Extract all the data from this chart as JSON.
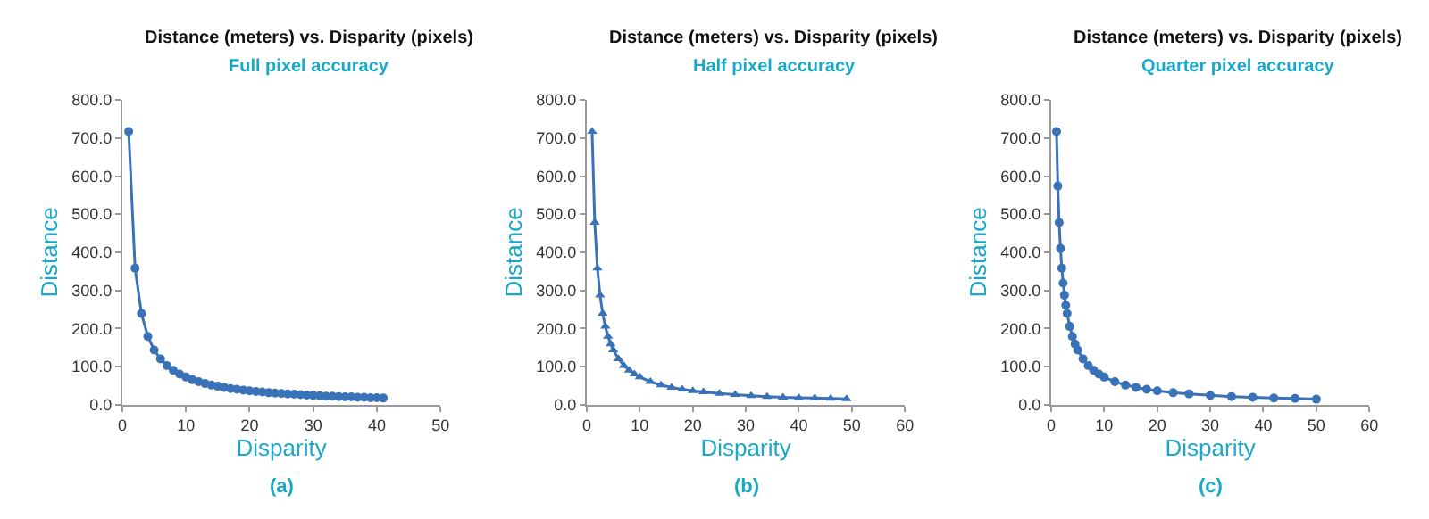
{
  "chart_data": [
    {
      "type": "line",
      "title": "Distance (meters) vs. Disparity (pixels)",
      "subtitle": "Full pixel accuracy",
      "xlabel": "Disparity",
      "ylabel": "Distance",
      "annotations": [
        "(a)"
      ],
      "marker": "circle",
      "x": [
        1,
        2,
        3,
        4,
        5,
        6,
        7,
        8,
        9,
        10,
        11,
        12,
        13,
        14,
        15,
        16,
        17,
        18,
        19,
        20,
        21,
        22,
        23,
        24,
        25,
        26,
        27,
        28,
        29,
        30,
        31,
        32,
        33,
        34,
        35,
        36,
        37,
        38,
        39,
        40,
        41
      ],
      "series": [
        {
          "color": "#3a72b8",
          "values": [
            717,
            358,
            239,
            179,
            143,
            120,
            102,
            90,
            80,
            72,
            65,
            60,
            55,
            51,
            48,
            45,
            42,
            40,
            38,
            36,
            34,
            33,
            31,
            30,
            29,
            28,
            27,
            26,
            25,
            24,
            23,
            22,
            22,
            21,
            20,
            20,
            19,
            19,
            18,
            18,
            17
          ]
        }
      ],
      "xlim": [
        0,
        50
      ],
      "xticks": [
        0,
        10,
        20,
        30,
        40,
        50
      ],
      "ylim": [
        0,
        800
      ],
      "yticks": [
        {
          "value": 0,
          "label": "0.0"
        },
        {
          "value": 100,
          "label": "100.0"
        },
        {
          "value": 200,
          "label": "200.0"
        },
        {
          "value": 300,
          "label": "300.0"
        },
        {
          "value": 400,
          "label": "400.0"
        },
        {
          "value": 500,
          "label": "500.0"
        },
        {
          "value": 600,
          "label": "600.0"
        },
        {
          "value": 700,
          "label": "700.0"
        },
        {
          "value": 800,
          "label": "800.0"
        }
      ]
    },
    {
      "type": "line",
      "title": "Distance (meters) vs. Disparity (pixels)",
      "subtitle": "Half pixel accuracy",
      "xlabel": "Disparity",
      "ylabel": "Distance",
      "annotations": [
        "(b)"
      ],
      "marker": "triangle",
      "x": [
        1,
        1.5,
        2,
        2.5,
        3,
        3.5,
        4,
        4.5,
        5,
        6,
        7,
        8,
        9,
        10,
        12,
        14,
        16,
        18,
        20,
        22,
        25,
        28,
        31,
        34,
        37,
        40,
        43,
        46,
        49
      ],
      "series": [
        {
          "color": "#3a72b8",
          "values": [
            717,
            478,
            358,
            287,
            239,
            205,
            179,
            159,
            143,
            120,
            102,
            90,
            80,
            72,
            60,
            51,
            45,
            40,
            36,
            33,
            29,
            26,
            23,
            21,
            19,
            18,
            17,
            16,
            15
          ]
        }
      ],
      "xlim": [
        0,
        60
      ],
      "xticks": [
        0,
        10,
        20,
        30,
        40,
        50,
        60
      ],
      "ylim": [
        0,
        800
      ],
      "yticks": [
        {
          "value": 0,
          "label": "0.0"
        },
        {
          "value": 100,
          "label": "100.0"
        },
        {
          "value": 200,
          "label": "200.0"
        },
        {
          "value": 300,
          "label": "300.0"
        },
        {
          "value": 400,
          "label": "400.0"
        },
        {
          "value": 500,
          "label": "500.0"
        },
        {
          "value": 600,
          "label": "600.0"
        },
        {
          "value": 700,
          "label": "700.0"
        },
        {
          "value": 800,
          "label": "800.0"
        }
      ]
    },
    {
      "type": "line",
      "title": "Distance (meters) vs. Disparity (pixels)",
      "subtitle": "Quarter pixel accuracy",
      "xlabel": "Disparity",
      "ylabel": "Distance",
      "annotations": [
        "(c)"
      ],
      "marker": "circle",
      "x": [
        1,
        1.25,
        1.5,
        1.75,
        2,
        2.25,
        2.5,
        2.75,
        3,
        3.5,
        4,
        4.5,
        5,
        6,
        7,
        8,
        9,
        10,
        12,
        14,
        16,
        18,
        20,
        23,
        26,
        30,
        34,
        38,
        42,
        46,
        50
      ],
      "series": [
        {
          "color": "#3a72b8",
          "values": [
            717,
            574,
            478,
            410,
            358,
            319,
            287,
            261,
            239,
            205,
            179,
            159,
            143,
            120,
            102,
            90,
            80,
            72,
            60,
            51,
            45,
            40,
            36,
            31,
            28,
            24,
            21,
            19,
            17,
            16,
            14
          ]
        }
      ],
      "xlim": [
        0,
        60
      ],
      "xticks": [
        0,
        10,
        20,
        30,
        40,
        50,
        60
      ],
      "ylim": [
        0,
        800
      ],
      "yticks": [
        {
          "value": 0,
          "label": "0.0"
        },
        {
          "value": 100,
          "label": "100.0"
        },
        {
          "value": 200,
          "label": "200.0"
        },
        {
          "value": 300,
          "label": "300.0"
        },
        {
          "value": 400,
          "label": "400.0"
        },
        {
          "value": 500,
          "label": "500.0"
        },
        {
          "value": 600,
          "label": "600.0"
        },
        {
          "value": 700,
          "label": "700.0"
        },
        {
          "value": 800,
          "label": "800.0"
        }
      ]
    }
  ]
}
